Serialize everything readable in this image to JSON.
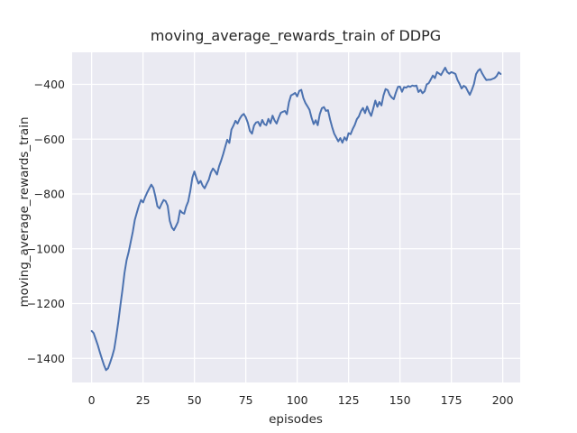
{
  "figure": {
    "title": "moving_average_rewards_train of DDPG",
    "xlabel": "episodes",
    "ylabel": "moving_average_rewards_train"
  },
  "chart_data": {
    "type": "line",
    "title": "moving_average_rewards_train of DDPG",
    "xlabel": "episodes",
    "ylabel": "moving_average_rewards_train",
    "x_ticks": [
      0,
      25,
      50,
      75,
      100,
      125,
      150,
      175,
      200
    ],
    "y_ticks": [
      -400,
      -600,
      -800,
      -1000,
      -1200,
      -1400
    ],
    "xlim": [
      -9.5,
      208.5
    ],
    "ylim": [
      -1488,
      -283
    ],
    "grid": true,
    "legend_position": "none",
    "style": {
      "fig_bg": "#ffffff",
      "axes_bg": "#eaeaf2",
      "grid_color": "#ffffff",
      "line_color": "#4c72b0",
      "text_color": "#262626",
      "line_width": 2
    },
    "series": [
      {
        "name": "moving_average_rewards_train",
        "points": [
          [
            0,
            -1300
          ],
          [
            1,
            -1308
          ],
          [
            2,
            -1330
          ],
          [
            3,
            -1352
          ],
          [
            4,
            -1378
          ],
          [
            5,
            -1402
          ],
          [
            6,
            -1424
          ],
          [
            7,
            -1443
          ],
          [
            8,
            -1436
          ],
          [
            9,
            -1415
          ],
          [
            10,
            -1392
          ],
          [
            11,
            -1366
          ],
          [
            12,
            -1318
          ],
          [
            13,
            -1265
          ],
          [
            14,
            -1205
          ],
          [
            15,
            -1148
          ],
          [
            16,
            -1088
          ],
          [
            17,
            -1042
          ],
          [
            18,
            -1012
          ],
          [
            19,
            -975
          ],
          [
            20,
            -938
          ],
          [
            21,
            -895
          ],
          [
            22,
            -868
          ],
          [
            23,
            -842
          ],
          [
            24,
            -822
          ],
          [
            25,
            -831
          ],
          [
            26,
            -812
          ],
          [
            27,
            -795
          ],
          [
            28,
            -780
          ],
          [
            29,
            -766
          ],
          [
            30,
            -778
          ],
          [
            31,
            -808
          ],
          [
            32,
            -845
          ],
          [
            33,
            -853
          ],
          [
            34,
            -836
          ],
          [
            35,
            -822
          ],
          [
            36,
            -826
          ],
          [
            37,
            -843
          ],
          [
            38,
            -898
          ],
          [
            39,
            -922
          ],
          [
            40,
            -932
          ],
          [
            41,
            -918
          ],
          [
            42,
            -902
          ],
          [
            43,
            -860
          ],
          [
            44,
            -868
          ],
          [
            45,
            -872
          ],
          [
            46,
            -846
          ],
          [
            47,
            -827
          ],
          [
            48,
            -788
          ],
          [
            49,
            -740
          ],
          [
            50,
            -718
          ],
          [
            51,
            -742
          ],
          [
            52,
            -762
          ],
          [
            53,
            -752
          ],
          [
            54,
            -770
          ],
          [
            55,
            -779
          ],
          [
            56,
            -763
          ],
          [
            57,
            -748
          ],
          [
            58,
            -722
          ],
          [
            59,
            -707
          ],
          [
            60,
            -716
          ],
          [
            61,
            -729
          ],
          [
            62,
            -699
          ],
          [
            63,
            -678
          ],
          [
            64,
            -654
          ],
          [
            65,
            -628
          ],
          [
            66,
            -602
          ],
          [
            67,
            -614
          ],
          [
            68,
            -565
          ],
          [
            69,
            -550
          ],
          [
            70,
            -533
          ],
          [
            71,
            -543
          ],
          [
            72,
            -526
          ],
          [
            73,
            -514
          ],
          [
            74,
            -508
          ],
          [
            75,
            -520
          ],
          [
            76,
            -540
          ],
          [
            77,
            -570
          ],
          [
            78,
            -580
          ],
          [
            79,
            -550
          ],
          [
            80,
            -539
          ],
          [
            81,
            -537
          ],
          [
            82,
            -552
          ],
          [
            83,
            -530
          ],
          [
            84,
            -545
          ],
          [
            85,
            -549
          ],
          [
            86,
            -526
          ],
          [
            87,
            -542
          ],
          [
            88,
            -514
          ],
          [
            89,
            -532
          ],
          [
            90,
            -543
          ],
          [
            91,
            -522
          ],
          [
            92,
            -504
          ],
          [
            93,
            -500
          ],
          [
            94,
            -497
          ],
          [
            95,
            -509
          ],
          [
            96,
            -465
          ],
          [
            97,
            -440
          ],
          [
            98,
            -436
          ],
          [
            99,
            -431
          ],
          [
            100,
            -444
          ],
          [
            101,
            -424
          ],
          [
            102,
            -420
          ],
          [
            103,
            -450
          ],
          [
            104,
            -468
          ],
          [
            105,
            -480
          ],
          [
            106,
            -493
          ],
          [
            107,
            -522
          ],
          [
            108,
            -545
          ],
          [
            109,
            -531
          ],
          [
            110,
            -549
          ],
          [
            111,
            -509
          ],
          [
            112,
            -487
          ],
          [
            113,
            -483
          ],
          [
            114,
            -497
          ],
          [
            115,
            -494
          ],
          [
            116,
            -528
          ],
          [
            117,
            -556
          ],
          [
            118,
            -580
          ],
          [
            119,
            -594
          ],
          [
            120,
            -608
          ],
          [
            121,
            -596
          ],
          [
            122,
            -613
          ],
          [
            123,
            -593
          ],
          [
            124,
            -604
          ],
          [
            125,
            -578
          ],
          [
            126,
            -582
          ],
          [
            127,
            -563
          ],
          [
            128,
            -548
          ],
          [
            129,
            -527
          ],
          [
            130,
            -517
          ],
          [
            131,
            -498
          ],
          [
            132,
            -486
          ],
          [
            133,
            -505
          ],
          [
            134,
            -481
          ],
          [
            135,
            -500
          ],
          [
            136,
            -515
          ],
          [
            137,
            -488
          ],
          [
            138,
            -459
          ],
          [
            139,
            -482
          ],
          [
            140,
            -464
          ],
          [
            141,
            -477
          ],
          [
            142,
            -440
          ],
          [
            143,
            -417
          ],
          [
            144,
            -421
          ],
          [
            145,
            -438
          ],
          [
            146,
            -448
          ],
          [
            147,
            -454
          ],
          [
            148,
            -430
          ],
          [
            149,
            -409
          ],
          [
            150,
            -408
          ],
          [
            151,
            -427
          ],
          [
            152,
            -410
          ],
          [
            153,
            -412
          ],
          [
            154,
            -406
          ],
          [
            155,
            -409
          ],
          [
            156,
            -404
          ],
          [
            157,
            -406
          ],
          [
            158,
            -404
          ],
          [
            159,
            -428
          ],
          [
            160,
            -420
          ],
          [
            161,
            -432
          ],
          [
            162,
            -425
          ],
          [
            163,
            -400
          ],
          [
            164,
            -396
          ],
          [
            165,
            -382
          ],
          [
            166,
            -368
          ],
          [
            167,
            -377
          ],
          [
            168,
            -355
          ],
          [
            169,
            -360
          ],
          [
            170,
            -366
          ],
          [
            171,
            -352
          ],
          [
            172,
            -339
          ],
          [
            173,
            -355
          ],
          [
            174,
            -361
          ],
          [
            175,
            -355
          ],
          [
            176,
            -358
          ],
          [
            177,
            -362
          ],
          [
            178,
            -384
          ],
          [
            179,
            -398
          ],
          [
            180,
            -415
          ],
          [
            181,
            -405
          ],
          [
            182,
            -410
          ],
          [
            183,
            -425
          ],
          [
            184,
            -438
          ],
          [
            185,
            -420
          ],
          [
            186,
            -399
          ],
          [
            187,
            -363
          ],
          [
            188,
            -350
          ],
          [
            189,
            -344
          ],
          [
            190,
            -360
          ],
          [
            191,
            -373
          ],
          [
            192,
            -384
          ],
          [
            193,
            -383
          ],
          [
            194,
            -383
          ],
          [
            195,
            -380
          ],
          [
            196,
            -377
          ],
          [
            197,
            -370
          ],
          [
            198,
            -356
          ],
          [
            199,
            -362
          ]
        ]
      }
    ]
  }
}
